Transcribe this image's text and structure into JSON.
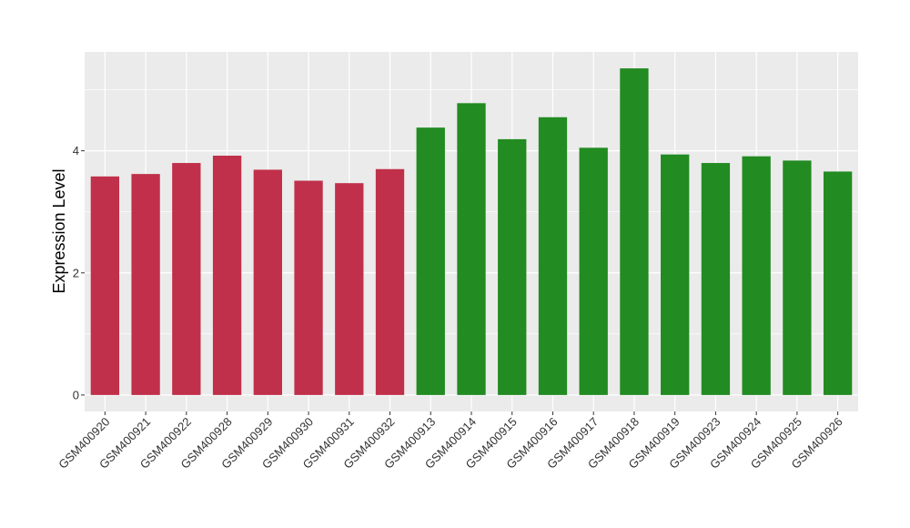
{
  "chart_data": {
    "type": "bar",
    "title": "",
    "xlabel": "",
    "ylabel": "Expression Level",
    "categories": [
      "GSM400920",
      "GSM400921",
      "GSM400922",
      "GSM400928",
      "GSM400929",
      "GSM400930",
      "GSM400931",
      "GSM400932",
      "GSM400913",
      "GSM400914",
      "GSM400915",
      "GSM400916",
      "GSM400917",
      "GSM400918",
      "GSM400919",
      "GSM400923",
      "GSM400924",
      "GSM400925",
      "GSM400926"
    ],
    "values": [
      3.58,
      3.62,
      3.8,
      3.92,
      3.69,
      3.51,
      3.47,
      3.7,
      4.38,
      4.78,
      4.19,
      4.55,
      4.05,
      5.35,
      3.94,
      3.8,
      3.91,
      3.84,
      3.66
    ],
    "bar_colors": [
      "#C0304A",
      "#C0304A",
      "#C0304A",
      "#C0304A",
      "#C0304A",
      "#C0304A",
      "#C0304A",
      "#C0304A",
      "#228B22",
      "#228B22",
      "#228B22",
      "#228B22",
      "#228B22",
      "#228B22",
      "#228B22",
      "#228B22",
      "#228B22",
      "#228B22",
      "#228B22"
    ],
    "y_ticks": [
      0,
      2,
      4
    ],
    "y_tick_labels": [
      "0",
      "2",
      "4"
    ],
    "ylim": [
      -0.27,
      5.62
    ],
    "grid": true,
    "panel_background": "#EBEBEB",
    "grid_color": "#FFFFFF",
    "legend": "none"
  }
}
